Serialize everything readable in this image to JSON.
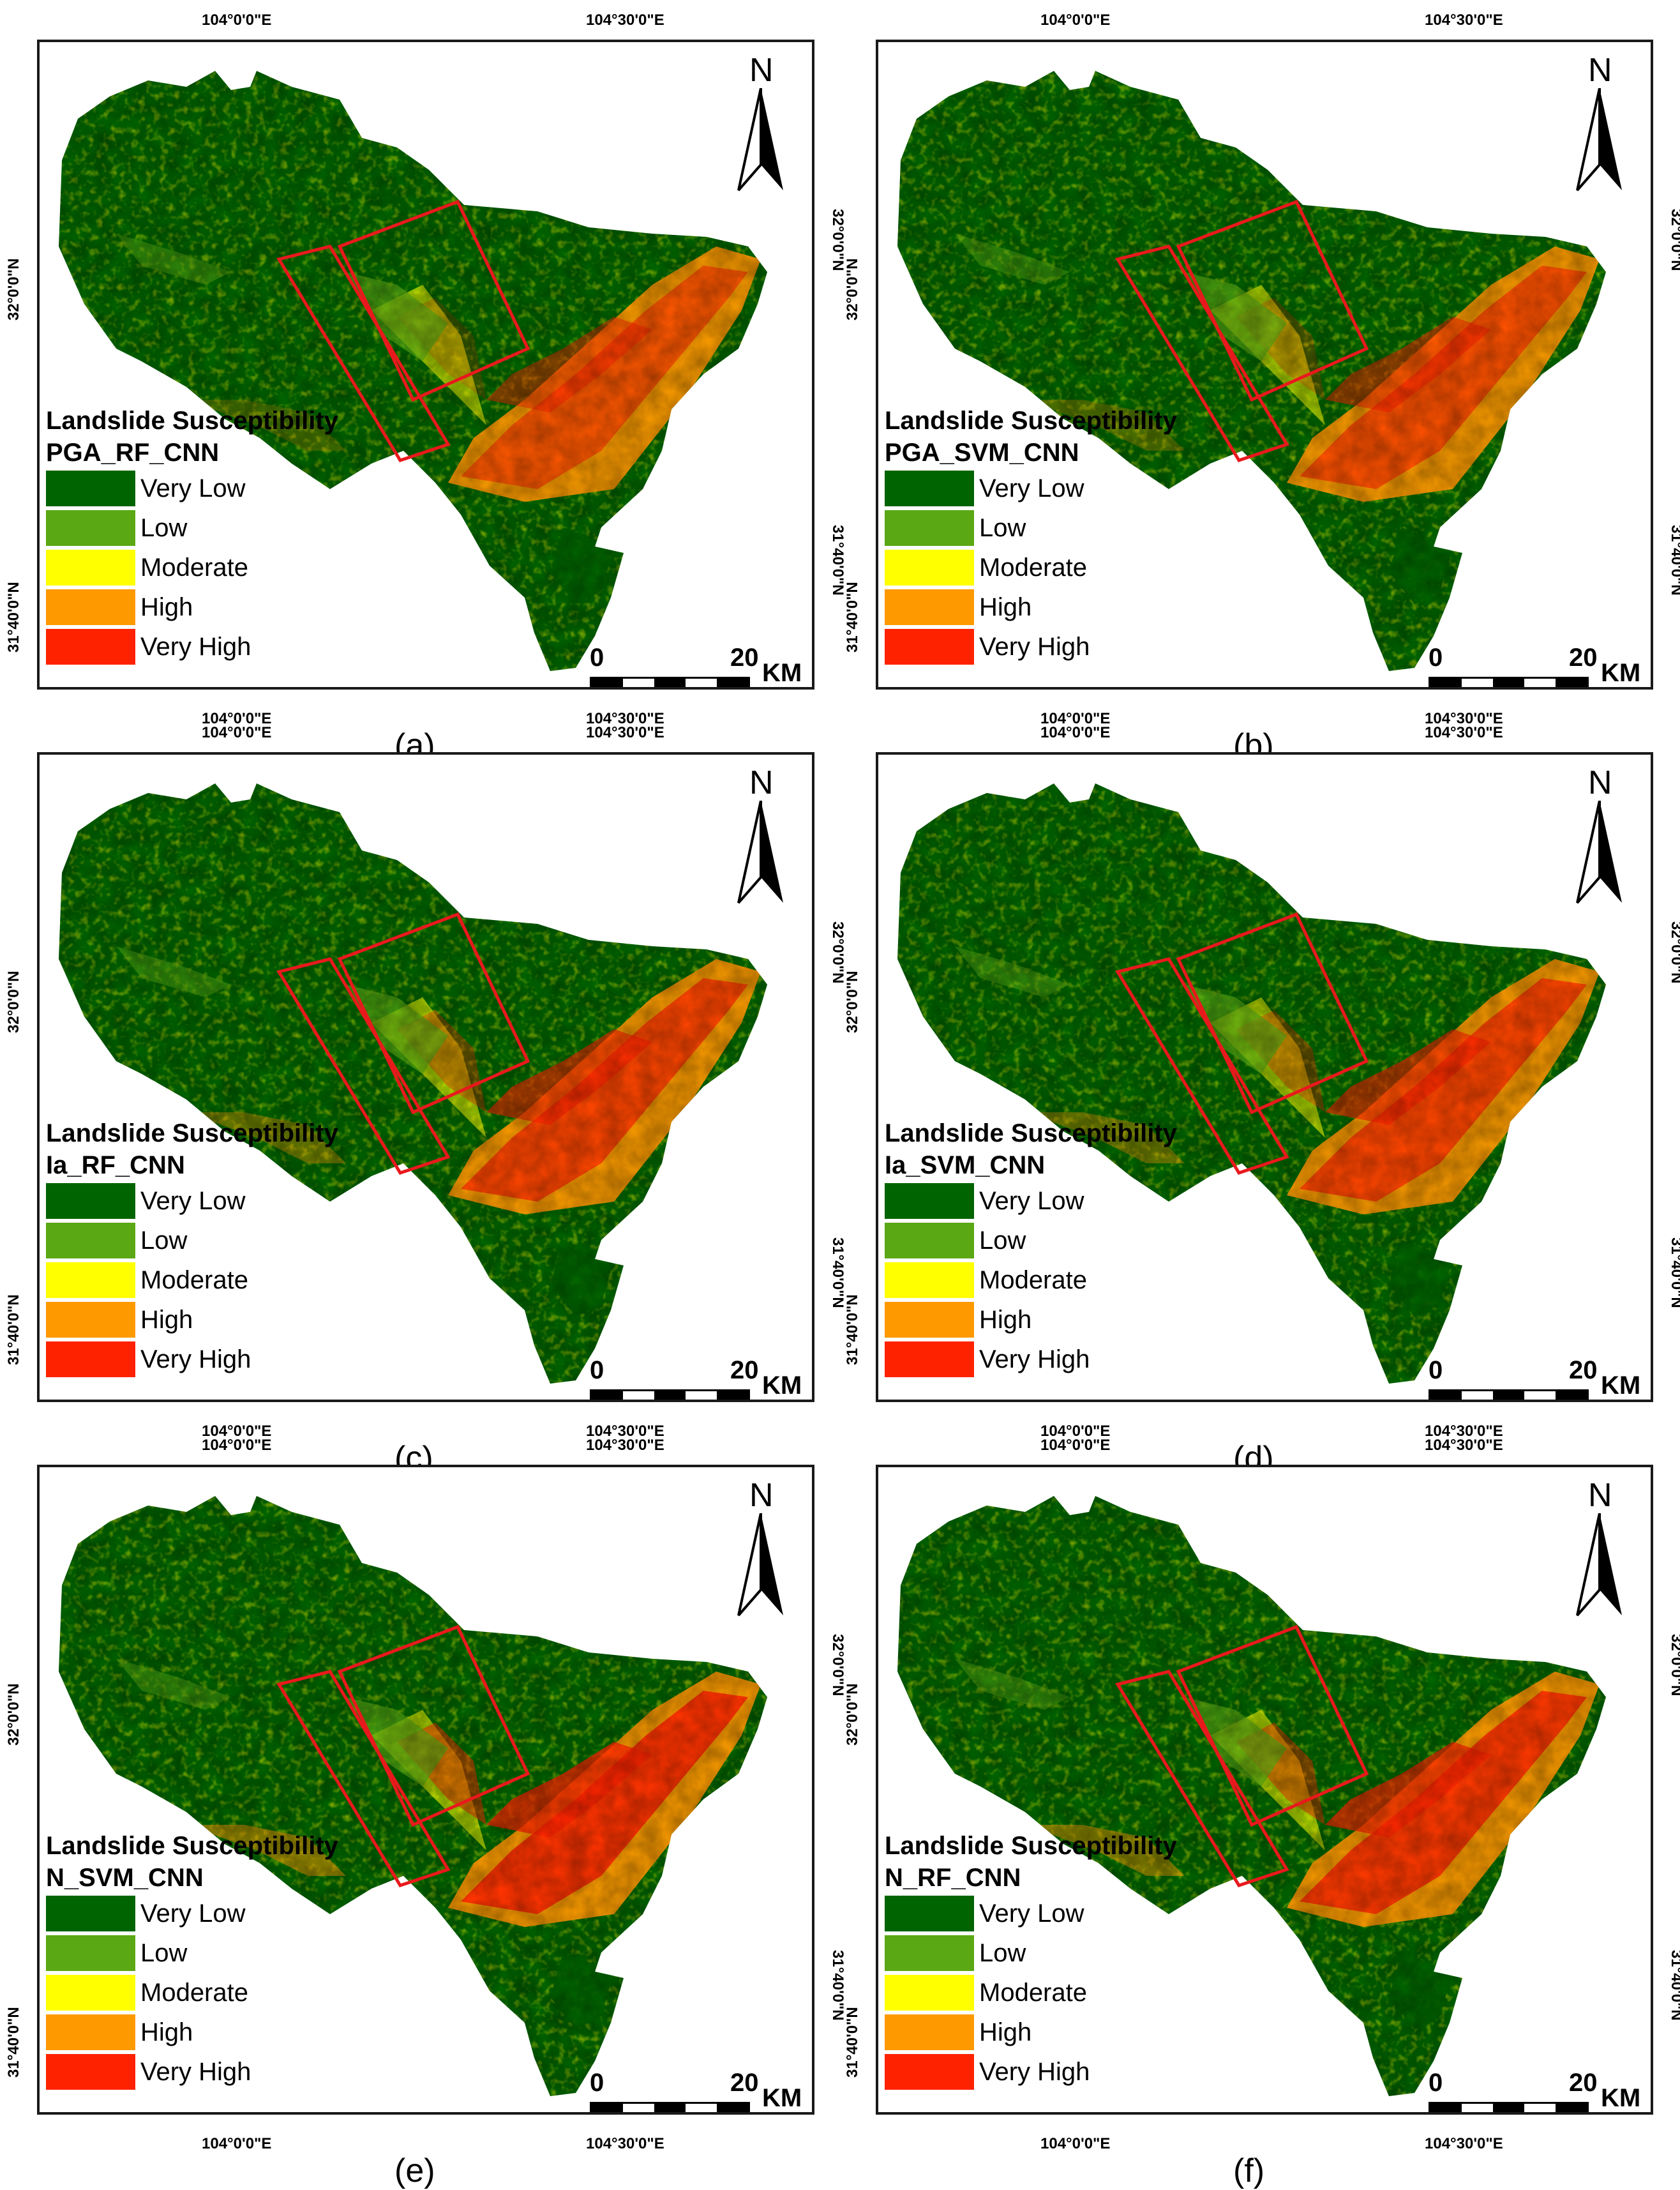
{
  "lon_labels": [
    "104°0'0\"E",
    "104°30'0\"E"
  ],
  "lat_labels": [
    "32°0'0\"N",
    "31°40'0\"N"
  ],
  "legend_title": "Landslide Susceptibility",
  "classes": [
    {
      "label": "Very Low",
      "color": "#006400"
    },
    {
      "label": "Low",
      "color": "#5aa814"
    },
    {
      "label": "Moderate",
      "color": "#ffff00"
    },
    {
      "label": "High",
      "color": "#ff9900"
    },
    {
      "label": "Very High",
      "color": "#ff2200"
    }
  ],
  "north_label": "N",
  "scale": {
    "zero": "0",
    "max": "20",
    "unit": "KM"
  },
  "panels": [
    {
      "model": "PGA_RF_CNN",
      "caption": "(a)",
      "high_level": 0.55
    },
    {
      "model": "PGA_SVM_CNN",
      "caption": "(b)",
      "high_level": 0.6
    },
    {
      "model": "Ia_RF_CNN",
      "caption": "(c)",
      "high_level": 0.7
    },
    {
      "model": "Ia_SVM_CNN",
      "caption": "(d)",
      "high_level": 0.7
    },
    {
      "model": "N_SVM_CNN",
      "caption": "(e)",
      "high_level": 0.85
    },
    {
      "model": "N_RF_CNN",
      "caption": "(f)",
      "high_level": 0.8
    }
  ]
}
